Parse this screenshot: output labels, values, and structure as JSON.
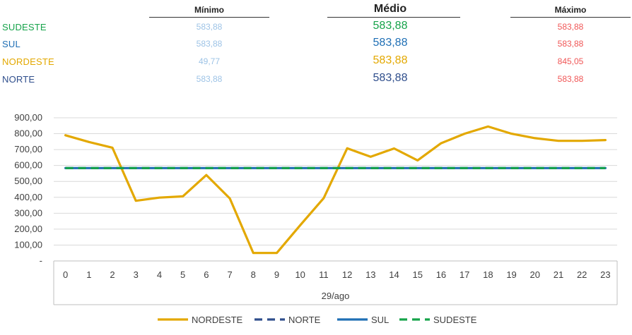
{
  "summary": {
    "headers": {
      "min": "Mínimo",
      "avg": "Médio",
      "max": "Máximo"
    },
    "rows": [
      {
        "region": "SUDESTE",
        "color": "#16A34A",
        "min": "583,88",
        "min_color": "#9DC3E6",
        "avg": "583,88",
        "avg_color": "#16A34A",
        "max": "583,88",
        "max_color": "#F05656"
      },
      {
        "region": "SUL",
        "color": "#1F6FB5",
        "min": "583,88",
        "min_color": "#9DC3E6",
        "avg": "583,88",
        "avg_color": "#1F6FB5",
        "max": "583,88",
        "max_color": "#F05656"
      },
      {
        "region": "NORDESTE",
        "color": "#E3A800",
        "min": "49,77",
        "min_color": "#9DC3E6",
        "avg": "583,88",
        "avg_color": "#E3A800",
        "max": "845,05",
        "max_color": "#F05656"
      },
      {
        "region": "NORTE",
        "color": "#2F4E8C",
        "min": "583,88",
        "min_color": "#9DC3E6",
        "avg": "583,88",
        "avg_color": "#2F4E8C",
        "max": "583,88",
        "max_color": "#F05656"
      }
    ]
  },
  "chart_data": {
    "type": "line",
    "x": [
      0,
      1,
      2,
      3,
      4,
      5,
      6,
      7,
      8,
      9,
      10,
      11,
      12,
      13,
      14,
      15,
      16,
      17,
      18,
      19,
      20,
      21,
      22,
      23
    ],
    "x_tick_labels": [
      "0",
      "1",
      "2",
      "3",
      "4",
      "5",
      "6",
      "7",
      "8",
      "9",
      "10",
      "11",
      "12",
      "13",
      "14",
      "15",
      "16",
      "17",
      "18",
      "19",
      "20",
      "21",
      "22",
      "23"
    ],
    "xlabel": "29/ago",
    "ylim": [
      0,
      900
    ],
    "y_ticks": [
      0,
      100,
      200,
      300,
      400,
      500,
      600,
      700,
      800,
      900
    ],
    "y_tick_labels": [
      "-",
      "100,00",
      "200,00",
      "300,00",
      "400,00",
      "500,00",
      "600,00",
      "700,00",
      "800,00",
      "900,00"
    ],
    "grid": true,
    "legend_position": "bottom",
    "series": [
      {
        "name": "NORDESTE",
        "color": "#E3A800",
        "dash": "solid",
        "values": [
          790,
          748,
          712,
          378,
          398,
          406,
          540,
          393,
          50,
          50,
          225,
          395,
          708,
          655,
          707,
          632,
          740,
          800,
          845,
          800,
          772,
          755,
          755,
          760
        ]
      },
      {
        "name": "NORTE",
        "color": "#2F4E8C",
        "dash": "dashed",
        "values": [
          583.88,
          583.88,
          583.88,
          583.88,
          583.88,
          583.88,
          583.88,
          583.88,
          583.88,
          583.88,
          583.88,
          583.88,
          583.88,
          583.88,
          583.88,
          583.88,
          583.88,
          583.88,
          583.88,
          583.88,
          583.88,
          583.88,
          583.88,
          583.88
        ]
      },
      {
        "name": "SUL",
        "color": "#1F6FB5",
        "dash": "solid",
        "values": [
          583.88,
          583.88,
          583.88,
          583.88,
          583.88,
          583.88,
          583.88,
          583.88,
          583.88,
          583.88,
          583.88,
          583.88,
          583.88,
          583.88,
          583.88,
          583.88,
          583.88,
          583.88,
          583.88,
          583.88,
          583.88,
          583.88,
          583.88,
          583.88
        ]
      },
      {
        "name": "SUDESTE",
        "color": "#16A34A",
        "dash": "dashed",
        "values": [
          583.88,
          583.88,
          583.88,
          583.88,
          583.88,
          583.88,
          583.88,
          583.88,
          583.88,
          583.88,
          583.88,
          583.88,
          583.88,
          583.88,
          583.88,
          583.88,
          583.88,
          583.88,
          583.88,
          583.88,
          583.88,
          583.88,
          583.88,
          583.88
        ]
      }
    ]
  }
}
